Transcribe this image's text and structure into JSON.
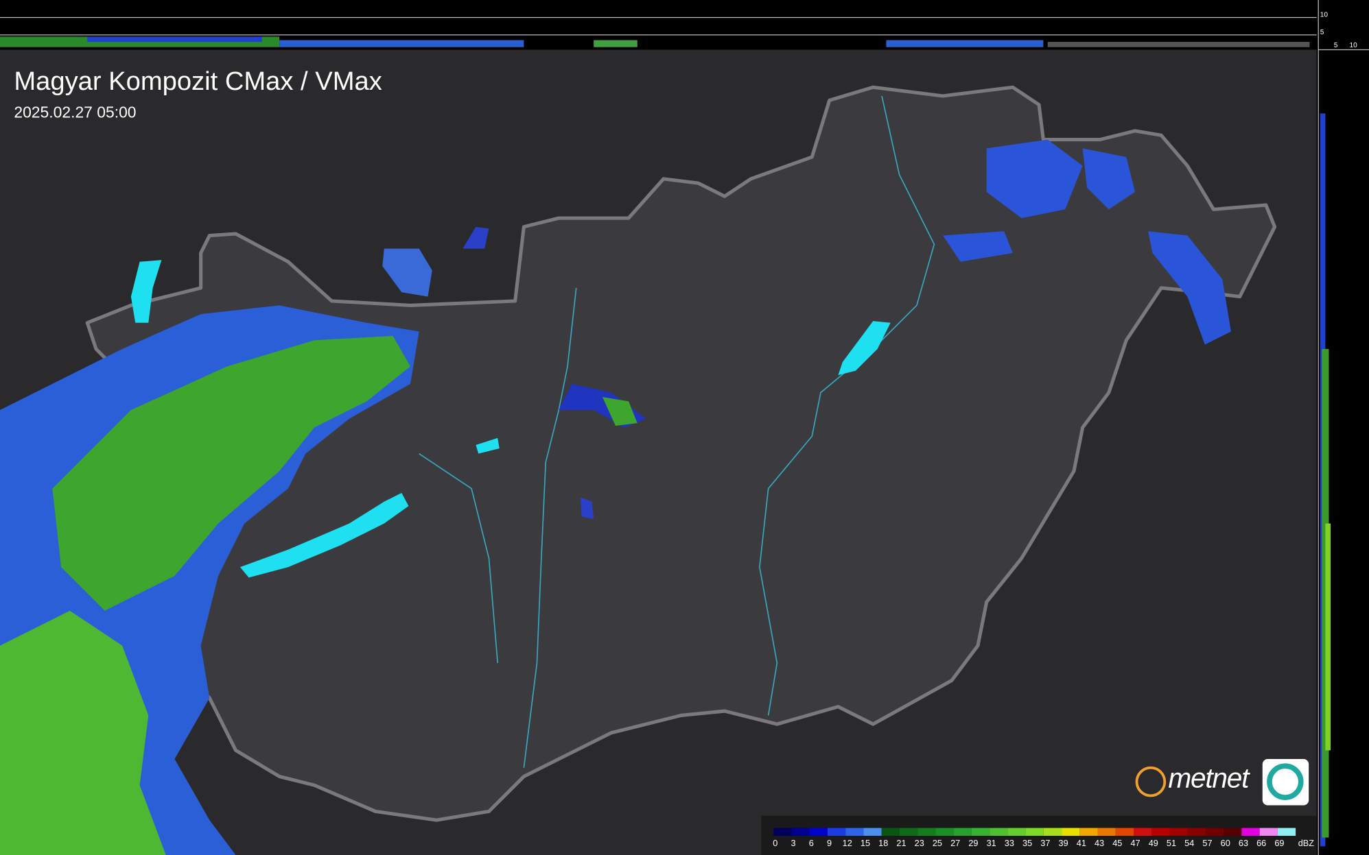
{
  "header": {
    "title": "Magyar Kompozit CMax / VMax",
    "timestamp": "2025.02.27 05:00"
  },
  "brand": "metnet",
  "side_panel": {
    "top_ticks": [
      10,
      5
    ],
    "right_ticks": [
      5,
      10
    ]
  },
  "legend": {
    "unit": "dBZ",
    "values": [
      0,
      3,
      6,
      9,
      12,
      15,
      18,
      21,
      23,
      25,
      27,
      29,
      31,
      33,
      35,
      37,
      39,
      41,
      43,
      45,
      47,
      49,
      51,
      54,
      57,
      60,
      63,
      66,
      69
    ],
    "colors": [
      "#00005a",
      "#00008c",
      "#0000c8",
      "#1c3ce0",
      "#2f64e6",
      "#4a90ec",
      "#0b5514",
      "#0f6a19",
      "#157c1f",
      "#1d8e26",
      "#27a02e",
      "#38b030",
      "#4fc030",
      "#66cd2e",
      "#80d828",
      "#a8e020",
      "#e8e000",
      "#f0a800",
      "#e87800",
      "#e04800",
      "#d01010",
      "#b80000",
      "#a00000",
      "#880000",
      "#700000",
      "#560000",
      "#e000e0",
      "#f088f0",
      "#90f0f0"
    ]
  }
}
